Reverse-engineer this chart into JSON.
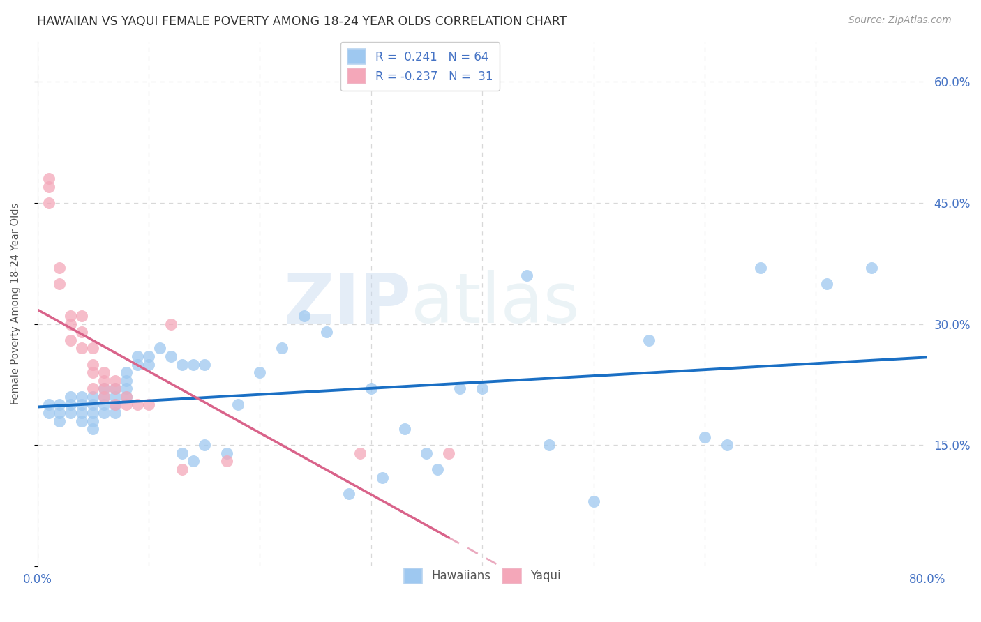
{
  "title": "HAWAIIAN VS YAQUI FEMALE POVERTY AMONG 18-24 YEAR OLDS CORRELATION CHART",
  "source": "Source: ZipAtlas.com",
  "ylabel": "Female Poverty Among 18-24 Year Olds",
  "xlim": [
    0,
    0.8
  ],
  "ylim": [
    0,
    0.65
  ],
  "watermark_zip": "ZIP",
  "watermark_atlas": "atlas",
  "hawaiian_color": "#9ec8f0",
  "yaqui_color": "#f4a7b9",
  "trendline_hawaiian_color": "#1a6fc4",
  "trendline_yaqui_color": "#d9638a",
  "background_color": "#ffffff",
  "grid_color": "#d8d8d8",
  "tick_color": "#4472c4",
  "hawaiians_x": [
    0.01,
    0.01,
    0.02,
    0.02,
    0.02,
    0.03,
    0.03,
    0.03,
    0.04,
    0.04,
    0.04,
    0.04,
    0.05,
    0.05,
    0.05,
    0.05,
    0.05,
    0.06,
    0.06,
    0.06,
    0.06,
    0.07,
    0.07,
    0.07,
    0.07,
    0.08,
    0.08,
    0.08,
    0.08,
    0.09,
    0.09,
    0.1,
    0.1,
    0.11,
    0.12,
    0.13,
    0.13,
    0.14,
    0.14,
    0.15,
    0.15,
    0.17,
    0.18,
    0.2,
    0.22,
    0.24,
    0.26,
    0.28,
    0.3,
    0.31,
    0.33,
    0.35,
    0.36,
    0.38,
    0.4,
    0.44,
    0.46,
    0.5,
    0.55,
    0.6,
    0.62,
    0.65,
    0.71,
    0.75
  ],
  "hawaiians_y": [
    0.2,
    0.19,
    0.2,
    0.19,
    0.18,
    0.2,
    0.19,
    0.21,
    0.21,
    0.2,
    0.19,
    0.18,
    0.21,
    0.2,
    0.19,
    0.18,
    0.17,
    0.22,
    0.21,
    0.2,
    0.19,
    0.22,
    0.21,
    0.2,
    0.19,
    0.24,
    0.23,
    0.22,
    0.21,
    0.26,
    0.25,
    0.26,
    0.25,
    0.27,
    0.26,
    0.25,
    0.14,
    0.25,
    0.13,
    0.25,
    0.15,
    0.14,
    0.2,
    0.24,
    0.27,
    0.31,
    0.29,
    0.09,
    0.22,
    0.11,
    0.17,
    0.14,
    0.12,
    0.22,
    0.22,
    0.36,
    0.15,
    0.08,
    0.28,
    0.16,
    0.15,
    0.37,
    0.35,
    0.37
  ],
  "yaqui_x": [
    0.01,
    0.01,
    0.01,
    0.02,
    0.02,
    0.03,
    0.03,
    0.03,
    0.04,
    0.04,
    0.04,
    0.05,
    0.05,
    0.05,
    0.05,
    0.06,
    0.06,
    0.06,
    0.06,
    0.07,
    0.07,
    0.07,
    0.08,
    0.08,
    0.09,
    0.1,
    0.12,
    0.13,
    0.17,
    0.29,
    0.37
  ],
  "yaqui_y": [
    0.48,
    0.47,
    0.45,
    0.37,
    0.35,
    0.31,
    0.3,
    0.28,
    0.31,
    0.29,
    0.27,
    0.27,
    0.25,
    0.24,
    0.22,
    0.24,
    0.23,
    0.22,
    0.21,
    0.23,
    0.22,
    0.2,
    0.21,
    0.2,
    0.2,
    0.2,
    0.3,
    0.12,
    0.13,
    0.14,
    0.14
  ],
  "legend1_label": "R =  0.241   N = 64",
  "legend2_label": "R = -0.237   N =  31",
  "bottom_label1": "Hawaiians",
  "bottom_label2": "Yaqui"
}
